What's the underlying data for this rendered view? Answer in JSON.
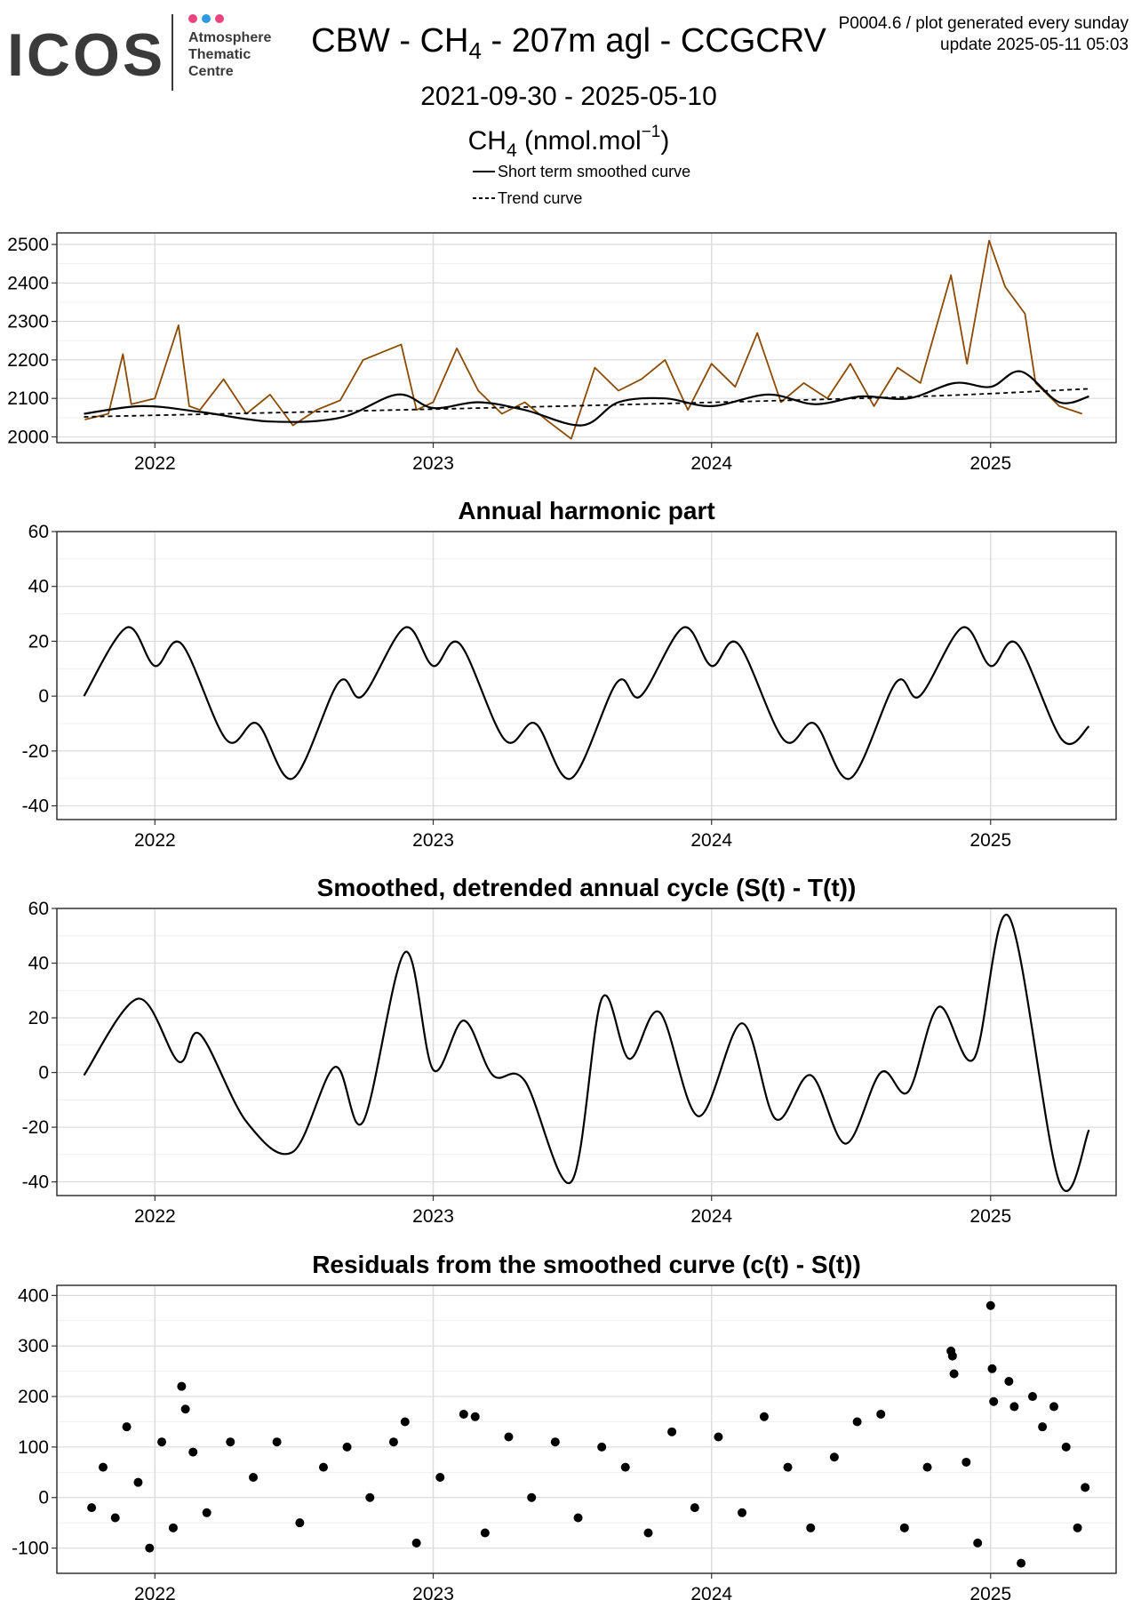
{
  "header": {
    "logo": {
      "word": "ICOS",
      "line1": "Atmosphere",
      "line2": "Thematic",
      "line3": "Centre",
      "dot_colors": [
        "#e8457e",
        "#2f9be0",
        "#e8457e"
      ]
    },
    "title_prefix": "CBW - CH",
    "title_sub": "4",
    "title_suffix": " - 207m agl - CCGCRV",
    "date_range": "2021-09-30 - 2025-05-10",
    "note_line1": "P0004.6 / plot generated every sunday",
    "note_line2": "update  2025-05-11 05:03",
    "units_prefix": "CH",
    "units_sub": "4",
    "units_mid": " (nmol.mol",
    "units_sup": "−1",
    "units_end": ")",
    "legend": [
      {
        "label": "Short term smoothed curve",
        "style": "solid"
      },
      {
        "label": "Trend curve",
        "style": "dashed"
      }
    ]
  },
  "colors": {
    "observations": "#8b4a00",
    "curves": "#000000",
    "grid": "#dcdcdc"
  },
  "chart_data": [
    {
      "type": "line",
      "panel": "ch4",
      "title": "",
      "x_range": [
        "2021-09-30",
        "2025-05-10"
      ],
      "x_ticks": [
        "2022",
        "2023",
        "2024",
        "2025"
      ],
      "ylim": [
        1985,
        2530
      ],
      "y_ticks": [
        2000,
        2100,
        2200,
        2300,
        2400,
        2500
      ],
      "grid": true,
      "series": [
        {
          "name": "",
          "role": "observations (daily CH4)",
          "points": [
            [
              "2021-10-01",
              2045
            ],
            [
              "2021-11-01",
              2060
            ],
            [
              "2021-11-20",
              2215
            ],
            [
              "2021-12-01",
              2085
            ],
            [
              "2022-01-01",
              2100
            ],
            [
              "2022-02-01",
              2290
            ],
            [
              "2022-02-15",
              2080
            ],
            [
              "2022-03-01",
              2070
            ],
            [
              "2022-04-01",
              2150
            ],
            [
              "2022-05-01",
              2060
            ],
            [
              "2022-06-01",
              2110
            ],
            [
              "2022-07-01",
              2030
            ],
            [
              "2022-08-01",
              2070
            ],
            [
              "2022-09-01",
              2095
            ],
            [
              "2022-10-01",
              2200
            ],
            [
              "2022-11-20",
              2240
            ],
            [
              "2022-12-10",
              2070
            ],
            [
              "2023-01-01",
              2090
            ],
            [
              "2023-02-01",
              2230
            ],
            [
              "2023-03-01",
              2120
            ],
            [
              "2023-04-01",
              2060
            ],
            [
              "2023-05-01",
              2090
            ],
            [
              "2023-06-01",
              2040
            ],
            [
              "2023-07-01",
              1995
            ],
            [
              "2023-08-01",
              2180
            ],
            [
              "2023-09-01",
              2120
            ],
            [
              "2023-10-01",
              2150
            ],
            [
              "2023-11-01",
              2200
            ],
            [
              "2023-12-01",
              2070
            ],
            [
              "2024-01-01",
              2190
            ],
            [
              "2024-02-01",
              2130
            ],
            [
              "2024-03-01",
              2270
            ],
            [
              "2024-04-01",
              2090
            ],
            [
              "2024-05-01",
              2140
            ],
            [
              "2024-06-01",
              2100
            ],
            [
              "2024-07-01",
              2190
            ],
            [
              "2024-08-01",
              2080
            ],
            [
              "2024-09-01",
              2180
            ],
            [
              "2024-10-01",
              2140
            ],
            [
              "2024-11-10",
              2420
            ],
            [
              "2024-12-01",
              2190
            ],
            [
              "2024-12-30",
              2510
            ],
            [
              "2025-01-20",
              2390
            ],
            [
              "2025-02-15",
              2320
            ],
            [
              "2025-03-01",
              2140
            ],
            [
              "2025-04-01",
              2080
            ],
            [
              "2025-05-01",
              2060
            ]
          ]
        },
        {
          "name": "Short term smoothed curve",
          "points": [
            [
              "2021-09-30",
              2060
            ],
            [
              "2021-12-15",
              2080
            ],
            [
              "2022-03-01",
              2065
            ],
            [
              "2022-06-01",
              2040
            ],
            [
              "2022-09-01",
              2050
            ],
            [
              "2022-11-15",
              2110
            ],
            [
              "2023-01-01",
              2075
            ],
            [
              "2023-03-01",
              2090
            ],
            [
              "2023-05-01",
              2070
            ],
            [
              "2023-07-15",
              2030
            ],
            [
              "2023-09-01",
              2090
            ],
            [
              "2023-11-01",
              2100
            ],
            [
              "2024-01-01",
              2080
            ],
            [
              "2024-03-15",
              2110
            ],
            [
              "2024-05-15",
              2085
            ],
            [
              "2024-07-15",
              2105
            ],
            [
              "2024-09-15",
              2100
            ],
            [
              "2024-11-15",
              2140
            ],
            [
              "2025-01-01",
              2130
            ],
            [
              "2025-02-10",
              2170
            ],
            [
              "2025-04-01",
              2090
            ],
            [
              "2025-05-10",
              2105
            ]
          ]
        },
        {
          "name": "Trend curve",
          "points": [
            [
              "2021-09-30",
              2052
            ],
            [
              "2022-09-30",
              2068
            ],
            [
              "2023-09-30",
              2085
            ],
            [
              "2024-09-30",
              2105
            ],
            [
              "2025-05-10",
              2125
            ]
          ]
        }
      ]
    },
    {
      "type": "line",
      "panel": "harmonic",
      "title": "Annual harmonic part",
      "x_range": [
        "2021-09-30",
        "2025-05-10"
      ],
      "x_ticks": [
        "2022",
        "2023",
        "2024",
        "2025"
      ],
      "ylim": [
        -45,
        60
      ],
      "y_ticks": [
        -40,
        -20,
        0,
        20,
        40,
        60
      ],
      "grid": true,
      "series": [
        {
          "name": "",
          "points": [
            [
              "2021-09-30",
              0
            ],
            [
              "2021-11-25",
              25
            ],
            [
              "2022-01-01",
              11
            ],
            [
              "2022-02-05",
              19
            ],
            [
              "2022-04-05",
              -16
            ],
            [
              "2022-05-15",
              -10
            ],
            [
              "2022-07-01",
              -30
            ],
            [
              "2022-08-30",
              5
            ],
            [
              "2022-09-30",
              0
            ],
            [
              "2022-11-25",
              25
            ],
            [
              "2023-01-01",
              11
            ],
            [
              "2023-02-05",
              19
            ],
            [
              "2023-04-05",
              -16
            ],
            [
              "2023-05-15",
              -10
            ],
            [
              "2023-07-01",
              -30
            ],
            [
              "2023-08-30",
              5
            ],
            [
              "2023-09-30",
              0
            ],
            [
              "2023-11-25",
              25
            ],
            [
              "2024-01-01",
              11
            ],
            [
              "2024-02-05",
              19
            ],
            [
              "2024-04-05",
              -16
            ],
            [
              "2024-05-15",
              -10
            ],
            [
              "2024-07-01",
              -30
            ],
            [
              "2024-08-30",
              5
            ],
            [
              "2024-09-30",
              0
            ],
            [
              "2024-11-25",
              25
            ],
            [
              "2025-01-01",
              11
            ],
            [
              "2025-02-05",
              19
            ],
            [
              "2025-04-05",
              -16
            ],
            [
              "2025-05-10",
              -11
            ]
          ]
        }
      ]
    },
    {
      "type": "line",
      "panel": "detrended",
      "title": "Smoothed, detrended annual cycle (S(t) - T(t))",
      "x_range": [
        "2021-09-30",
        "2025-05-10"
      ],
      "x_ticks": [
        "2022",
        "2023",
        "2024",
        "2025"
      ],
      "ylim": [
        -45,
        60
      ],
      "y_ticks": [
        -40,
        -20,
        0,
        20,
        40,
        60
      ],
      "grid": true,
      "series": [
        {
          "name": "",
          "points": [
            [
              "2021-09-30",
              -1
            ],
            [
              "2021-12-10",
              27
            ],
            [
              "2022-02-01",
              4
            ],
            [
              "2022-03-01",
              14
            ],
            [
              "2022-05-01",
              -18
            ],
            [
              "2022-07-01",
              -29
            ],
            [
              "2022-08-25",
              2
            ],
            [
              "2022-10-01",
              -18
            ],
            [
              "2022-11-25",
              44
            ],
            [
              "2023-01-01",
              1
            ],
            [
              "2023-02-10",
              19
            ],
            [
              "2023-03-20",
              -1
            ],
            [
              "2023-05-01",
              -3
            ],
            [
              "2023-07-01",
              -40
            ],
            [
              "2023-08-10",
              27
            ],
            [
              "2023-09-15",
              5
            ],
            [
              "2023-10-25",
              22
            ],
            [
              "2023-12-15",
              -16
            ],
            [
              "2024-02-10",
              18
            ],
            [
              "2024-03-25",
              -17
            ],
            [
              "2024-05-10",
              -1
            ],
            [
              "2024-06-25",
              -26
            ],
            [
              "2024-08-10",
              0
            ],
            [
              "2024-09-15",
              -7
            ],
            [
              "2024-10-25",
              24
            ],
            [
              "2024-12-10",
              5
            ],
            [
              "2025-01-25",
              57
            ],
            [
              "2025-04-01",
              -40
            ],
            [
              "2025-05-10",
              -21
            ]
          ]
        }
      ]
    },
    {
      "type": "scatter",
      "panel": "residuals",
      "title": "Residuals from the smoothed curve (c(t) - S(t))",
      "x_range": [
        "2021-09-30",
        "2025-05-10"
      ],
      "x_ticks": [
        "2022",
        "2023",
        "2024",
        "2025"
      ],
      "ylim": [
        -150,
        420
      ],
      "y_ticks": [
        -100,
        0,
        100,
        200,
        300,
        400
      ],
      "grid": true,
      "series": [
        {
          "name": "",
          "points": [
            [
              "2021-10-10",
              -20
            ],
            [
              "2021-10-25",
              60
            ],
            [
              "2021-11-10",
              -40
            ],
            [
              "2021-11-25",
              140
            ],
            [
              "2021-12-10",
              30
            ],
            [
              "2021-12-25",
              -100
            ],
            [
              "2022-01-10",
              110
            ],
            [
              "2022-01-25",
              -60
            ],
            [
              "2022-02-05",
              220
            ],
            [
              "2022-02-10",
              175
            ],
            [
              "2022-02-20",
              90
            ],
            [
              "2022-03-10",
              -30
            ],
            [
              "2022-04-10",
              110
            ],
            [
              "2022-05-10",
              40
            ],
            [
              "2022-06-10",
              110
            ],
            [
              "2022-07-10",
              -50
            ],
            [
              "2022-08-10",
              60
            ],
            [
              "2022-09-10",
              100
            ],
            [
              "2022-10-10",
              0
            ],
            [
              "2022-11-10",
              110
            ],
            [
              "2022-11-25",
              150
            ],
            [
              "2022-12-10",
              -90
            ],
            [
              "2023-01-10",
              40
            ],
            [
              "2023-02-10",
              165
            ],
            [
              "2023-02-25",
              160
            ],
            [
              "2023-03-10",
              -70
            ],
            [
              "2023-04-10",
              120
            ],
            [
              "2023-05-10",
              0
            ],
            [
              "2023-06-10",
              110
            ],
            [
              "2023-07-10",
              -40
            ],
            [
              "2023-08-10",
              100
            ],
            [
              "2023-09-10",
              60
            ],
            [
              "2023-10-10",
              -70
            ],
            [
              "2023-11-10",
              130
            ],
            [
              "2023-12-10",
              -20
            ],
            [
              "2024-01-10",
              120
            ],
            [
              "2024-02-10",
              -30
            ],
            [
              "2024-03-10",
              160
            ],
            [
              "2024-04-10",
              60
            ],
            [
              "2024-05-10",
              -60
            ],
            [
              "2024-06-10",
              80
            ],
            [
              "2024-07-10",
              150
            ],
            [
              "2024-08-10",
              165
            ],
            [
              "2024-09-10",
              -60
            ],
            [
              "2024-10-10",
              60
            ],
            [
              "2024-11-10",
              290
            ],
            [
              "2024-11-12",
              280
            ],
            [
              "2024-11-14",
              245
            ],
            [
              "2024-11-30",
              70
            ],
            [
              "2024-12-15",
              -90
            ],
            [
              "2025-01-01",
              380
            ],
            [
              "2025-01-03",
              255
            ],
            [
              "2025-01-05",
              190
            ],
            [
              "2025-01-25",
              230
            ],
            [
              "2025-02-01",
              180
            ],
            [
              "2025-02-10",
              -130
            ],
            [
              "2025-02-25",
              200
            ],
            [
              "2025-03-10",
              140
            ],
            [
              "2025-03-25",
              180
            ],
            [
              "2025-04-10",
              100
            ],
            [
              "2025-04-25",
              -60
            ],
            [
              "2025-05-05",
              20
            ]
          ]
        }
      ]
    }
  ]
}
